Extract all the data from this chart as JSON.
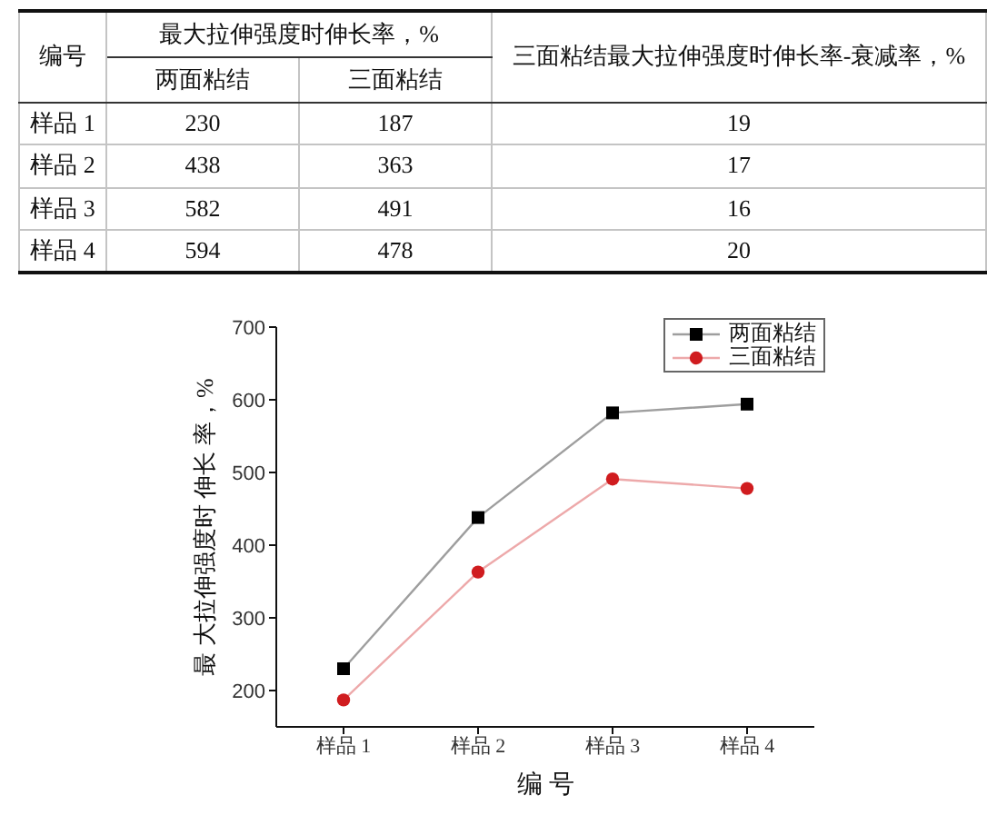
{
  "chart_data": [
    {
      "type": "other",
      "xlabel": "编号",
      "legend_title": "最大拉伸强度时伸长率，%",
      "y2label": "三面粘结最大拉伸强度时伸长率-衰减率，%",
      "categories": [
        "样品 1",
        "样品 2",
        "样品 3",
        "样品 4"
      ],
      "series": [
        {
          "name": "两面粘结",
          "values": [
            230,
            438,
            582,
            594
          ]
        },
        {
          "name": "三面粘结",
          "values": [
            187,
            363,
            491,
            478
          ]
        },
        {
          "axis": "y2",
          "values": [
            19,
            17,
            16,
            20
          ]
        }
      ],
      "data_labels": true
    },
    {
      "type": "line",
      "xlabel": "编 号",
      "ylabel": "最 大拉伸强度时 伸长 率，%",
      "categories": [
        "样品 1",
        "样品 2",
        "样品 3",
        "样品 4"
      ],
      "series": [
        {
          "name": "两面粘结",
          "color": "#000000",
          "marker": "square",
          "values": [
            230,
            438,
            582,
            594
          ]
        },
        {
          "name": "三面粘结",
          "color": "#d01c1f",
          "marker": "circle",
          "values": [
            187,
            363,
            491,
            478
          ]
        }
      ],
      "ylim": [
        150,
        700
      ],
      "yticks": [
        200,
        300,
        400,
        500,
        600,
        700
      ],
      "legend": "top right"
    }
  ]
}
